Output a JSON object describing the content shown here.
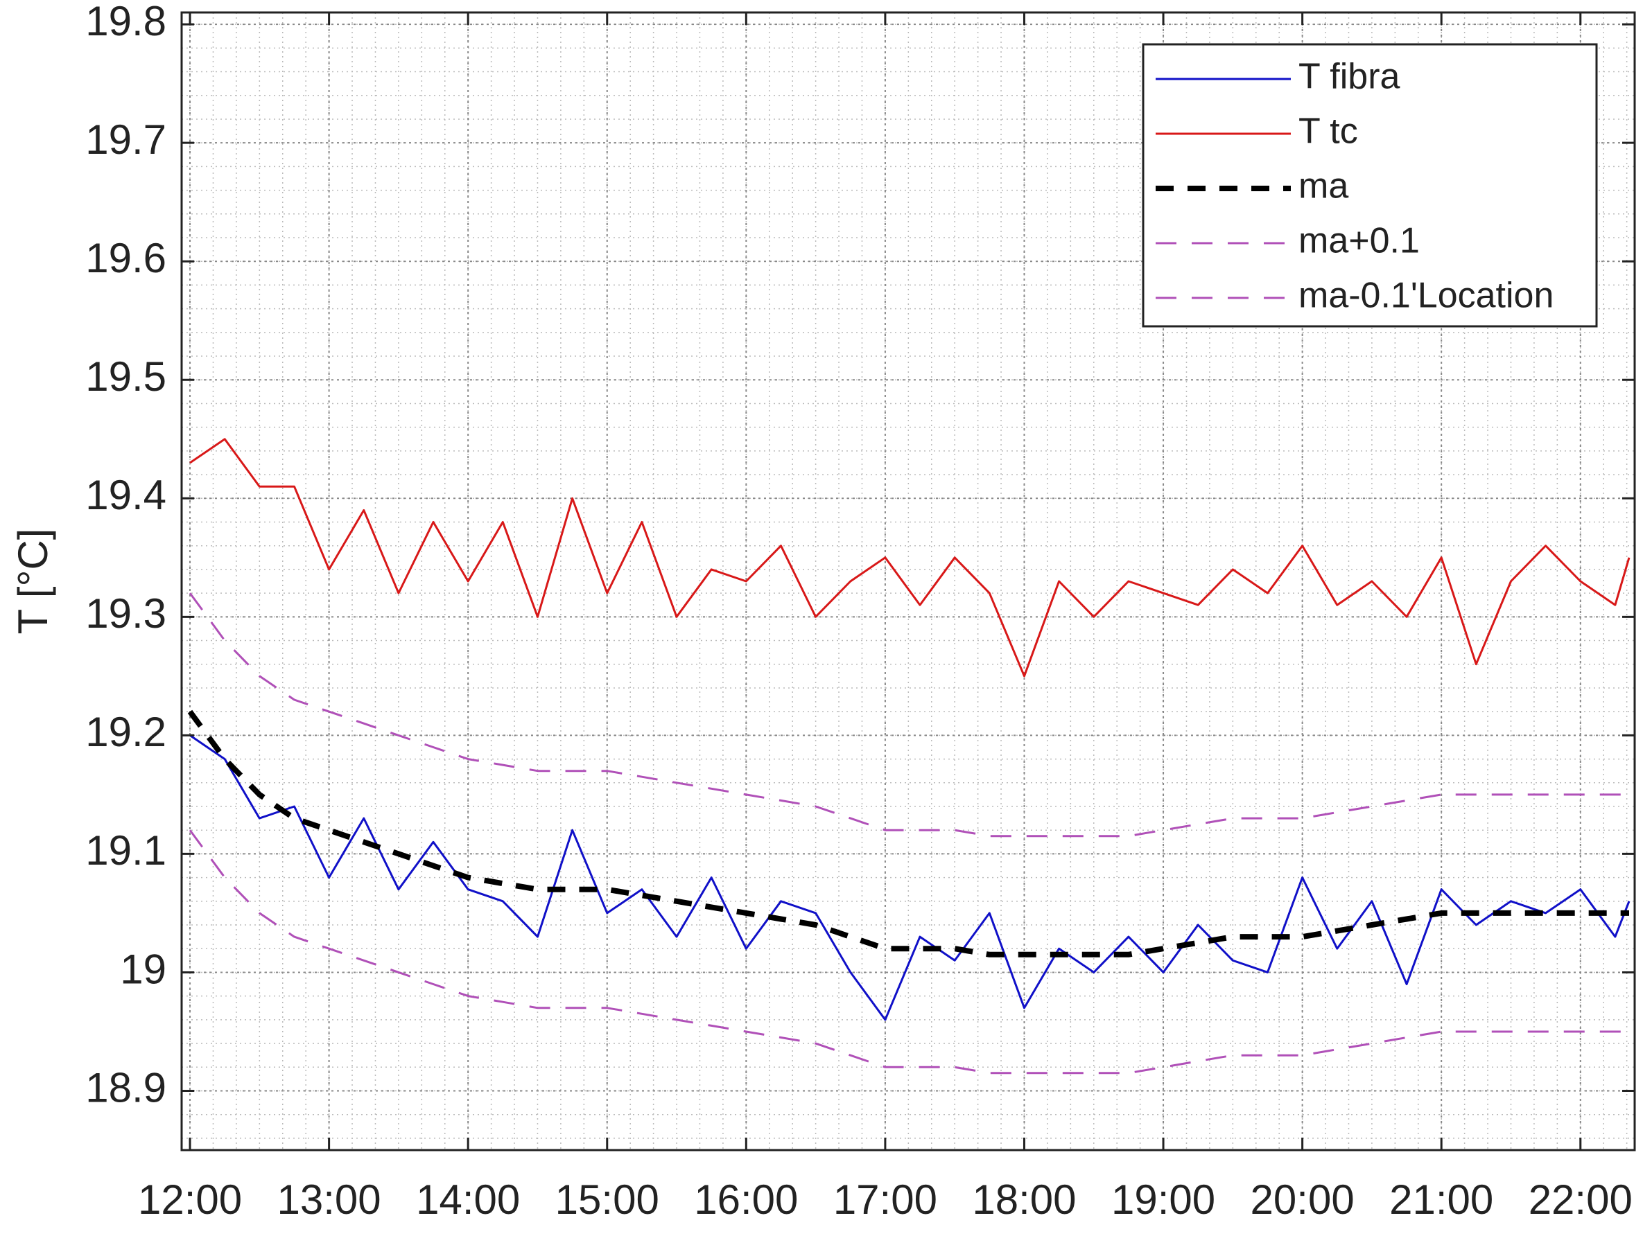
{
  "chart_data": {
    "type": "line",
    "y_label": "T [°C]",
    "x": [
      12.0,
      12.25,
      12.5,
      12.75,
      13.0,
      13.25,
      13.5,
      13.75,
      14.0,
      14.25,
      14.5,
      14.75,
      15.0,
      15.25,
      15.5,
      15.75,
      16.0,
      16.25,
      16.5,
      16.75,
      17.0,
      17.25,
      17.5,
      17.75,
      18.0,
      18.25,
      18.5,
      18.75,
      19.0,
      19.25,
      19.5,
      19.75,
      20.0,
      20.25,
      20.5,
      20.75,
      21.0,
      21.25,
      21.5,
      21.75,
      22.0,
      22.25,
      22.35
    ],
    "series": [
      {
        "name": "T fibra",
        "color": "#1010c8",
        "linestyle": "solid",
        "values": [
          19.2,
          19.18,
          19.13,
          19.14,
          19.08,
          19.13,
          19.07,
          19.11,
          19.07,
          19.06,
          19.03,
          19.12,
          19.05,
          19.07,
          19.03,
          19.08,
          19.02,
          19.06,
          19.05,
          19.0,
          18.96,
          19.03,
          19.01,
          19.05,
          18.97,
          19.02,
          19.0,
          19.03,
          19.0,
          19.04,
          19.01,
          19.0,
          19.08,
          19.02,
          19.06,
          18.99,
          19.07,
          19.04,
          19.06,
          19.05,
          19.07,
          19.03,
          19.06
        ]
      },
      {
        "name": "T tc",
        "color": "#d81818",
        "linestyle": "solid",
        "values": [
          19.43,
          19.45,
          19.41,
          19.41,
          19.34,
          19.39,
          19.32,
          19.38,
          19.33,
          19.38,
          19.3,
          19.4,
          19.32,
          19.38,
          19.3,
          19.34,
          19.33,
          19.36,
          19.3,
          19.33,
          19.35,
          19.31,
          19.35,
          19.32,
          19.25,
          19.33,
          19.3,
          19.33,
          19.32,
          19.31,
          19.34,
          19.32,
          19.36,
          19.31,
          19.33,
          19.3,
          19.35,
          19.26,
          19.33,
          19.36,
          19.33,
          19.31,
          19.35
        ]
      },
      {
        "name": "ma",
        "color": "#000000",
        "linestyle": "thick-dashed",
        "values": [
          19.22,
          19.18,
          19.15,
          19.13,
          19.12,
          19.11,
          19.1,
          19.09,
          19.08,
          19.075,
          19.07,
          19.07,
          19.07,
          19.065,
          19.06,
          19.055,
          19.05,
          19.045,
          19.04,
          19.03,
          19.02,
          19.02,
          19.02,
          19.015,
          19.015,
          19.015,
          19.015,
          19.015,
          19.02,
          19.025,
          19.03,
          19.03,
          19.03,
          19.035,
          19.04,
          19.045,
          19.05,
          19.05,
          19.05,
          19.05,
          19.05,
          19.05,
          19.05
        ]
      },
      {
        "name": "ma+0.1",
        "color": "#b050b8",
        "linestyle": "dashed",
        "values": [
          19.32,
          19.28,
          19.25,
          19.23,
          19.22,
          19.21,
          19.2,
          19.19,
          19.18,
          19.175,
          19.17,
          19.17,
          19.17,
          19.165,
          19.16,
          19.155,
          19.15,
          19.145,
          19.14,
          19.13,
          19.12,
          19.12,
          19.12,
          19.115,
          19.115,
          19.115,
          19.115,
          19.115,
          19.12,
          19.125,
          19.13,
          19.13,
          19.13,
          19.135,
          19.14,
          19.145,
          19.15,
          19.15,
          19.15,
          19.15,
          19.15,
          19.15,
          19.15
        ]
      },
      {
        "name": "ma-0.1'Location",
        "color": "#b050b8",
        "linestyle": "dashed",
        "values": [
          19.12,
          19.08,
          19.05,
          19.03,
          19.02,
          19.01,
          19.0,
          18.99,
          18.98,
          18.975,
          18.97,
          18.97,
          18.97,
          18.965,
          18.96,
          18.955,
          18.95,
          18.945,
          18.94,
          18.93,
          18.92,
          18.92,
          18.92,
          18.915,
          18.915,
          18.915,
          18.915,
          18.915,
          18.92,
          18.925,
          18.93,
          18.93,
          18.93,
          18.935,
          18.94,
          18.945,
          18.95,
          18.95,
          18.95,
          18.95,
          18.95,
          18.95,
          18.95
        ]
      }
    ],
    "xlim": [
      11.94,
      22.39
    ],
    "ylim": [
      18.85,
      19.81
    ],
    "xticks": [
      {
        "value": 12,
        "label": "12:00"
      },
      {
        "value": 13,
        "label": "13:00"
      },
      {
        "value": 14,
        "label": "14:00"
      },
      {
        "value": 15,
        "label": "15:00"
      },
      {
        "value": 16,
        "label": "16:00"
      },
      {
        "value": 17,
        "label": "17:00"
      },
      {
        "value": 18,
        "label": "18:00"
      },
      {
        "value": 19,
        "label": "19:00"
      },
      {
        "value": 20,
        "label": "20:00"
      },
      {
        "value": 21,
        "label": "21:00"
      },
      {
        "value": 22,
        "label": "22:00"
      }
    ],
    "yticks": [
      18.9,
      19,
      19.1,
      19.2,
      19.3,
      19.4,
      19.5,
      19.6,
      19.7,
      19.8
    ],
    "grid": true,
    "minor_grid": true,
    "legend": "upper right"
  }
}
